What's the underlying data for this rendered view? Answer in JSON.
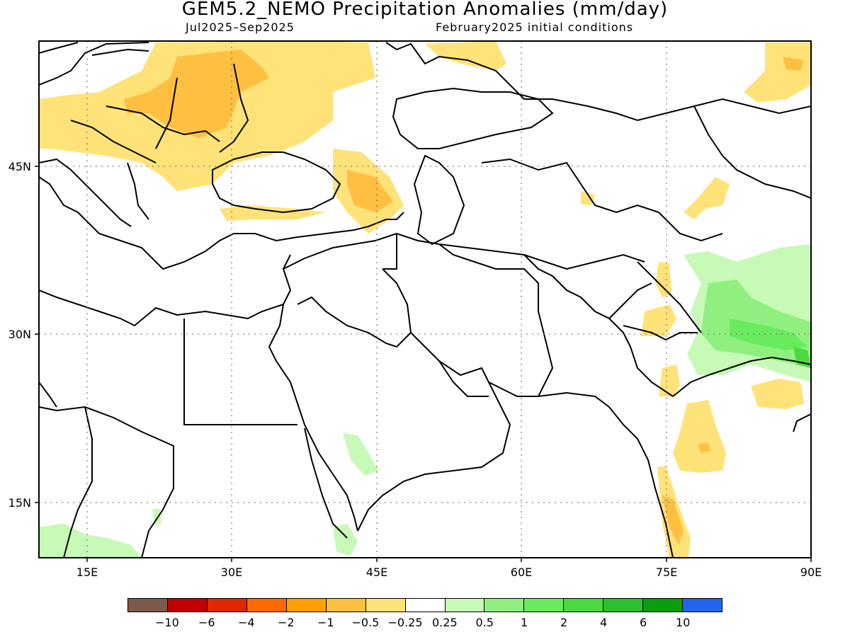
{
  "title": "GEM5.2_NEMO Precipitation Anomalies (mm/day)",
  "subtitle_left": "Jul2025–Sep2025",
  "subtitle_right": "February2025 initial conditions",
  "axes": {
    "lon_ticks": [
      "15E",
      "30E",
      "45E",
      "60E",
      "75E",
      "90E"
    ],
    "lat_ticks": [
      "45N",
      "30N",
      "15N"
    ]
  },
  "colorbar": {
    "colors": [
      "#7a5a4a",
      "#c00000",
      "#e02800",
      "#ff6a00",
      "#ffa000",
      "#ffbf40",
      "#ffe278",
      "#ffffff",
      "#c6fab6",
      "#8ff080",
      "#6aeb5e",
      "#4bd940",
      "#2fbf2a",
      "#0a9e0a",
      "#2166ee"
    ],
    "labels": [
      "−10",
      "−6",
      "−4",
      "−2",
      "−1",
      "−0.5",
      "−0.25",
      "0.25",
      "0.5",
      "1",
      "2",
      "4",
      "6",
      "10"
    ]
  },
  "chart_data": {
    "type": "heatmap",
    "title": "GEM5.2_NEMO Precipitation Anomalies (mm/day)",
    "period": "Jul2025–Sep2025",
    "initial_conditions": "February2025",
    "units": "mm/day",
    "xlim": [
      10,
      90
    ],
    "ylim": [
      10,
      56
    ],
    "levels": [
      -10,
      -6,
      -4,
      -2,
      -1,
      -0.5,
      -0.25,
      0.25,
      0.5,
      1,
      2,
      4,
      6,
      10
    ]
  }
}
